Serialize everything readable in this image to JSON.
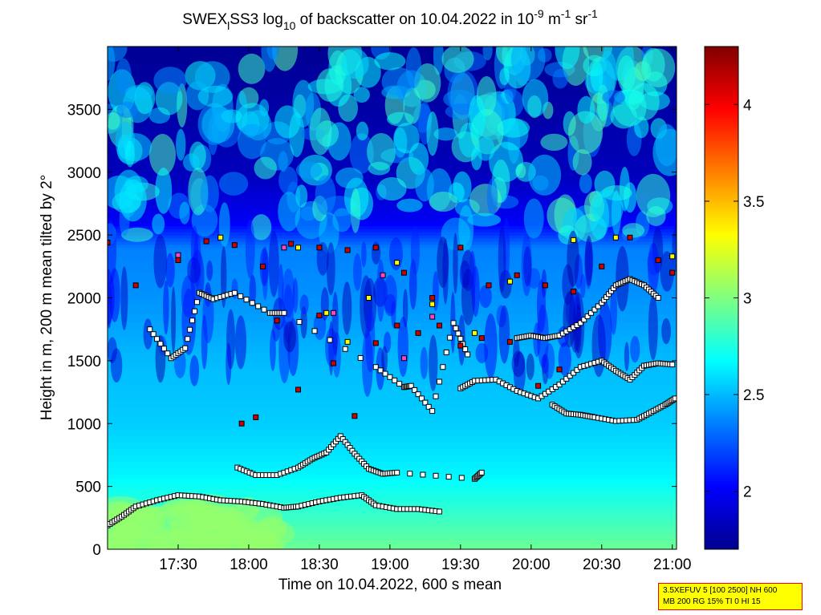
{
  "chart_data": [
    {
      "type": "heatmap",
      "title": {
        "pre": "SWEX",
        "sub1": "l",
        "mid": "SS3 log",
        "sub2": "10",
        "post": " of backscatter on 10.04.2022 in 10",
        "sup1": "-9",
        "post2": " m",
        "sup2": "-1",
        "post3": " sr",
        "sup3": "-1"
      },
      "xlabel": "Time on 10.04.2022, 600 s mean",
      "ylabel": "Height in m, 200 m mean tilted by 2°",
      "x_ticks": [
        "17:30",
        "18:00",
        "18:30",
        "19:00",
        "19:30",
        "20:00",
        "20:30",
        "21:00"
      ],
      "x_tick_hours": [
        17.5,
        18.0,
        18.5,
        19.0,
        19.5,
        20.0,
        20.5,
        21.0
      ],
      "xlim_hours": [
        17.0,
        21.03
      ],
      "y_ticks": [
        0,
        500,
        1000,
        1500,
        2000,
        2500,
        3000,
        3500
      ],
      "ylim": [
        0,
        4000
      ],
      "colorbar": {
        "ticks": [
          2,
          2.5,
          3,
          3.5,
          4
        ],
        "tick_labels": [
          "2",
          "2.5",
          "3",
          "3.5",
          "4"
        ],
        "clim": [
          1.7,
          4.3
        ],
        "colormap": "jet"
      },
      "background_profile": {
        "comment_free": true,
        "heights": [
          0,
          300,
          600,
          1000,
          1500,
          2000,
          2400,
          2600,
          3000,
          4000
        ],
        "values": [
          2.95,
          2.8,
          2.65,
          2.55,
          2.5,
          2.4,
          2.35,
          2.0,
          1.85,
          1.75
        ]
      },
      "series": [
        {
          "name": "",
          "marker": "square",
          "color": "#ffffff",
          "x_hours": [
            17.0,
            17.1,
            17.2,
            17.35,
            17.5,
            17.65,
            17.8,
            17.95,
            18.1,
            18.25,
            18.35,
            18.5,
            18.65,
            18.8,
            18.9,
            19.05,
            19.2,
            19.35
          ],
          "y": [
            190,
            260,
            340,
            390,
            430,
            420,
            390,
            380,
            360,
            330,
            340,
            380,
            410,
            430,
            350,
            320,
            320,
            300
          ]
        },
        {
          "name": "",
          "marker": "square",
          "color": "#ffffff",
          "x_hours": [
            17.92,
            18.05,
            18.2,
            18.35,
            18.45,
            18.55,
            18.65,
            18.75,
            18.85,
            18.95,
            19.05,
            19.6,
            19.65
          ],
          "y": [
            650,
            590,
            590,
            650,
            720,
            770,
            900,
            760,
            640,
            600,
            610,
            560,
            610
          ]
        },
        {
          "name": "",
          "marker": "square",
          "color": "#ffffff",
          "x_hours": [
            19.5,
            19.6,
            19.75,
            19.9,
            20.05,
            20.2,
            20.35,
            20.5,
            20.6,
            20.7,
            20.8,
            20.9,
            21.0
          ],
          "y": [
            1280,
            1340,
            1350,
            1260,
            1200,
            1310,
            1450,
            1500,
            1420,
            1350,
            1460,
            1480,
            1470
          ]
        },
        {
          "name": "",
          "marker": "square",
          "color": "#ffffff",
          "x_hours": [
            20.15,
            20.25,
            20.35,
            20.45,
            20.6,
            20.75,
            20.85,
            20.95,
            21.02
          ],
          "y": [
            1150,
            1080,
            1070,
            1050,
            1020,
            1030,
            1090,
            1150,
            1200
          ]
        },
        {
          "name": "",
          "marker": "square",
          "color": "#ffffff",
          "x_hours": [
            19.9,
            20.0,
            20.1,
            20.2,
            20.35,
            20.5,
            20.6,
            20.7,
            20.8,
            20.9
          ],
          "y": [
            1680,
            1700,
            1680,
            1700,
            1800,
            1960,
            2100,
            2150,
            2100,
            2000
          ]
        },
        {
          "name": "",
          "marker": "square",
          "color": "#ffffff",
          "x_hours": [
            17.3,
            17.45,
            17.55,
            17.65,
            17.75,
            17.9,
            18.15,
            18.25,
            18.9,
            19.1,
            19.15,
            19.3,
            19.45,
            19.55
          ],
          "y": [
            1750,
            1520,
            1600,
            2040,
            1990,
            2040,
            1880,
            1880,
            1450,
            1290,
            1300,
            1100,
            1800,
            1550
          ]
        },
        {
          "name": "",
          "marker": "square",
          "color": "#cc0000",
          "x_hours": [
            17.0,
            17.2,
            17.5,
            17.7,
            17.9,
            18.1,
            18.3,
            18.5,
            18.7,
            18.9,
            19.1,
            19.3,
            19.5,
            19.7,
            19.9,
            20.1,
            20.3,
            20.5,
            20.7,
            20.9,
            21.0
          ],
          "y": [
            2440,
            2100,
            2300,
            2450,
            2420,
            2250,
            2430,
            2400,
            2380,
            2400,
            2200,
            2000,
            2400,
            2100,
            2180,
            2100,
            2050,
            2250,
            2480,
            2300,
            2200
          ]
        },
        {
          "name": "",
          "marker": "square",
          "color": "#cc0000",
          "x_hours": [
            17.95,
            18.05,
            18.2,
            18.35,
            18.5,
            18.6,
            18.75,
            18.9,
            19.05,
            19.2,
            19.35,
            19.5,
            19.65,
            19.85,
            20.05,
            20.2
          ],
          "y": [
            1000,
            1050,
            1820,
            1270,
            1860,
            1480,
            1060,
            1640,
            1780,
            1720,
            1780,
            1620,
            1680,
            1650,
            1300,
            1430
          ]
        },
        {
          "name": "",
          "marker": "square",
          "color": "#ffff00",
          "x_hours": [
            17.8,
            18.35,
            18.55,
            18.7,
            18.85,
            19.05,
            19.3,
            19.6,
            19.85,
            20.3,
            20.6,
            21.0
          ],
          "y": [
            2480,
            2400,
            1880,
            1650,
            2000,
            2280,
            1950,
            1720,
            2130,
            2460,
            2480,
            2330
          ]
        },
        {
          "name": "",
          "marker": "square",
          "color": "#ff44cc",
          "x_hours": [
            17.5,
            18.25,
            18.6,
            18.95,
            19.1,
            19.3
          ],
          "y": [
            2340,
            2400,
            1880,
            2180,
            1520,
            1850
          ]
        }
      ],
      "legend": "none",
      "grid": false
    }
  ],
  "settings": {
    "line1": "3.5XEFUV 5 [100 2500] NH 600",
    "line2": "MB 200 RG 15% TI 0 HI 15"
  }
}
